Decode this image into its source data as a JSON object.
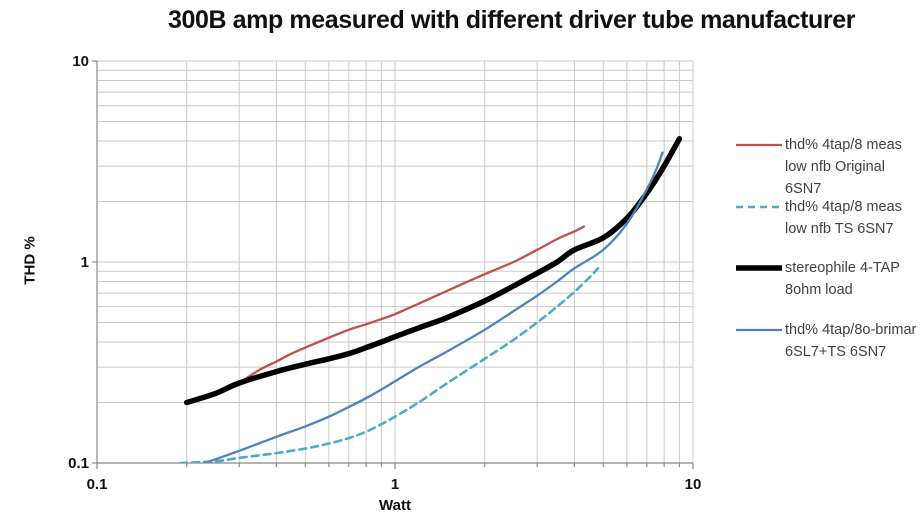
{
  "title": "300B amp measured with different driver tube manufacturer",
  "chart_data": {
    "type": "line",
    "title": "300B amp measured with different driver tube manufacturer",
    "xlabel": "Watt",
    "ylabel": "THD %",
    "x_scale": "log",
    "y_scale": "log",
    "xlim": [
      0.1,
      10
    ],
    "ylim": [
      0.1,
      10
    ],
    "x_ticks": [
      0.1,
      1,
      10
    ],
    "y_ticks": [
      0.1,
      1,
      10
    ],
    "x_tick_labels": [
      "0.1",
      "1",
      "10"
    ],
    "y_tick_labels": [
      "0.1",
      "1",
      "10"
    ],
    "grid": "log minor gridlines on, gray",
    "legend_position": "right",
    "series": [
      {
        "name": "thd% 4tap/8 meas low nfb Original 6SN7",
        "color": "#C0504D",
        "dash": "solid",
        "width": 2.3,
        "points": [
          [
            0.3,
            0.25
          ],
          [
            0.35,
            0.29
          ],
          [
            0.4,
            0.32
          ],
          [
            0.45,
            0.35
          ],
          [
            0.5,
            0.375
          ],
          [
            0.6,
            0.42
          ],
          [
            0.7,
            0.46
          ],
          [
            0.8,
            0.49
          ],
          [
            0.9,
            0.52
          ],
          [
            1.0,
            0.55
          ],
          [
            1.2,
            0.62
          ],
          [
            1.5,
            0.72
          ],
          [
            2.0,
            0.87
          ],
          [
            2.5,
            1.0
          ],
          [
            3.0,
            1.15
          ],
          [
            3.5,
            1.3
          ],
          [
            4.0,
            1.42
          ],
          [
            4.3,
            1.5
          ]
        ]
      },
      {
        "name": "thd% 4tap/8 meas low nfb TS 6SN7",
        "color": "#4BACC6",
        "dash": "dashed",
        "width": 2.6,
        "points": [
          [
            0.19,
            0.1
          ],
          [
            0.25,
            0.102
          ],
          [
            0.3,
            0.106
          ],
          [
            0.4,
            0.112
          ],
          [
            0.5,
            0.118
          ],
          [
            0.6,
            0.125
          ],
          [
            0.7,
            0.133
          ],
          [
            0.8,
            0.143
          ],
          [
            0.9,
            0.156
          ],
          [
            1.0,
            0.17
          ],
          [
            1.2,
            0.2
          ],
          [
            1.5,
            0.25
          ],
          [
            2.0,
            0.33
          ],
          [
            2.5,
            0.41
          ],
          [
            3.0,
            0.5
          ],
          [
            3.5,
            0.6
          ],
          [
            4.0,
            0.71
          ],
          [
            4.5,
            0.84
          ],
          [
            4.8,
            0.93
          ]
        ]
      },
      {
        "name": "stereophile 4-TAP 8ohm load",
        "color": "#000000",
        "dash": "solid",
        "width": 5.5,
        "points": [
          [
            0.2,
            0.2
          ],
          [
            0.25,
            0.222
          ],
          [
            0.3,
            0.25
          ],
          [
            0.4,
            0.285
          ],
          [
            0.5,
            0.31
          ],
          [
            0.6,
            0.33
          ],
          [
            0.7,
            0.35
          ],
          [
            0.8,
            0.375
          ],
          [
            0.9,
            0.4
          ],
          [
            1.0,
            0.425
          ],
          [
            1.2,
            0.47
          ],
          [
            1.5,
            0.53
          ],
          [
            2.0,
            0.64
          ],
          [
            2.5,
            0.76
          ],
          [
            3.0,
            0.88
          ],
          [
            3.5,
            1.0
          ],
          [
            4.0,
            1.15
          ],
          [
            5.0,
            1.32
          ],
          [
            6.0,
            1.65
          ],
          [
            7.0,
            2.2
          ],
          [
            8.0,
            3.0
          ],
          [
            9.0,
            4.1
          ]
        ]
      },
      {
        "name": "thd% 4tap/8o-brimar 6SL7+TS 6SN7",
        "color": "#4F81BD",
        "dash": "solid",
        "width": 2.3,
        "points": [
          [
            0.23,
            0.1
          ],
          [
            0.3,
            0.115
          ],
          [
            0.4,
            0.135
          ],
          [
            0.5,
            0.152
          ],
          [
            0.6,
            0.17
          ],
          [
            0.7,
            0.19
          ],
          [
            0.8,
            0.21
          ],
          [
            0.9,
            0.232
          ],
          [
            1.0,
            0.255
          ],
          [
            1.2,
            0.3
          ],
          [
            1.5,
            0.36
          ],
          [
            2.0,
            0.46
          ],
          [
            2.5,
            0.57
          ],
          [
            3.0,
            0.68
          ],
          [
            3.5,
            0.8
          ],
          [
            4.0,
            0.93
          ],
          [
            5.0,
            1.15
          ],
          [
            6.0,
            1.55
          ],
          [
            7.0,
            2.3
          ],
          [
            7.5,
            2.85
          ],
          [
            7.9,
            3.5
          ]
        ]
      }
    ]
  },
  "colors": {
    "background": "#ffffff",
    "gridline": "#c8c8c8",
    "axis": "#888888",
    "tick_text": "#111111",
    "legend_text": "#404040"
  }
}
